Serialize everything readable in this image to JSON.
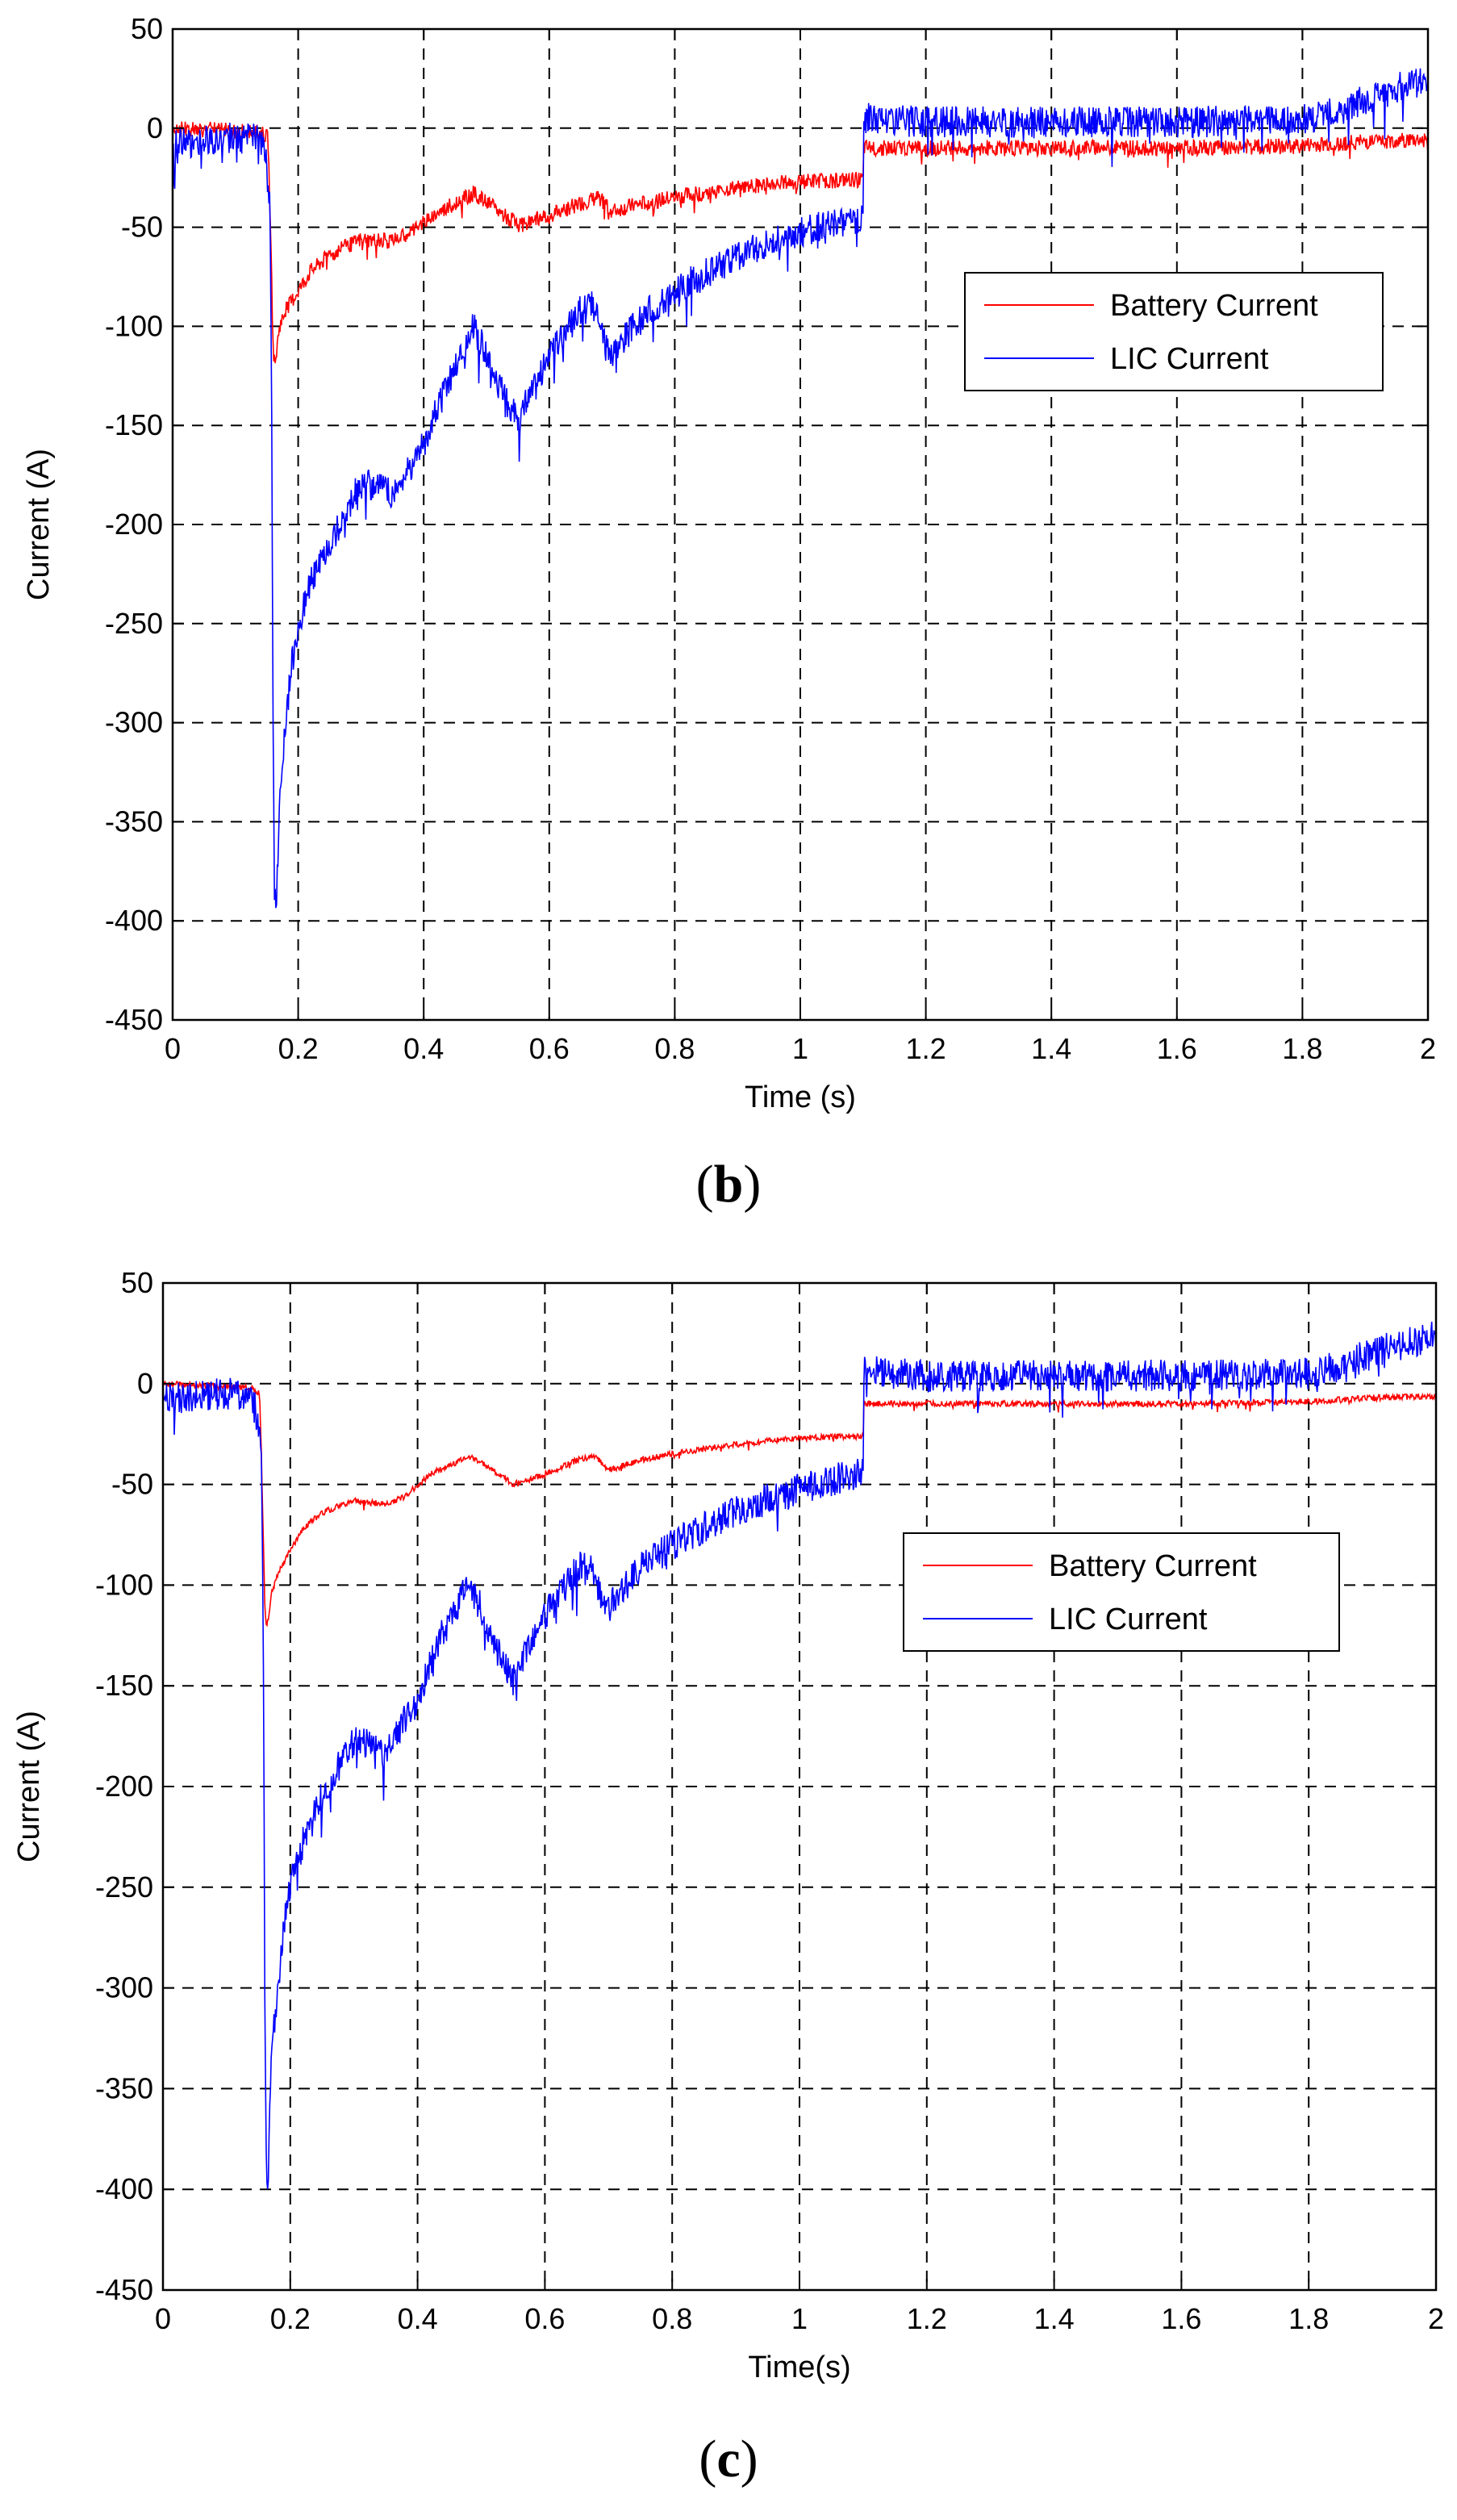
{
  "chart_data": [
    {
      "panel_label": "b",
      "type": "line",
      "xlabel": "Time (s)",
      "ylabel": "Current (A)",
      "xlim": [
        0,
        2
      ],
      "ylim": [
        -450,
        50
      ],
      "xticks": [
        0,
        0.2,
        0.4,
        0.6,
        0.8,
        1,
        1.2,
        1.4,
        1.6,
        1.8,
        2
      ],
      "xtick_labels": [
        "0",
        "0.2",
        "0.4",
        "0.6",
        "0.8",
        "1",
        "1.2",
        "1.4",
        "1.6",
        "1.8",
        "2"
      ],
      "yticks": [
        50,
        0,
        -50,
        -100,
        -150,
        -200,
        -250,
        -300,
        -350,
        -400,
        -450
      ],
      "ytick_labels": [
        "50",
        "0",
        "-50",
        "-100",
        "-150",
        "-200",
        "-250",
        "-300",
        "-350",
        "-400",
        "-450"
      ],
      "grid": true,
      "legend_position": "right",
      "series": [
        {
          "name": "Battery Current",
          "color": "#ff0000",
          "noise": 4,
          "x": [
            0,
            0.14,
            0.152,
            0.155,
            0.16,
            0.163,
            0.17,
            0.18,
            0.2,
            0.22,
            0.25,
            0.3,
            0.35,
            0.38,
            0.42,
            0.48,
            0.52,
            0.55,
            0.6,
            0.65,
            0.68,
            0.7,
            0.75,
            0.8,
            0.9,
            1.0,
            1.1,
            1.101,
            1.2,
            1.4,
            1.6,
            1.8,
            1.9,
            2.0
          ],
          "y": [
            0,
            -2,
            -5,
            -40,
            -110,
            -120,
            -100,
            -92,
            -82,
            -72,
            -64,
            -56,
            -57,
            -52,
            -43,
            -33,
            -42,
            -49,
            -44,
            -38,
            -35,
            -42,
            -38,
            -35,
            -30,
            -27,
            -26,
            -10,
            -10,
            -10,
            -10,
            -9,
            -7,
            -6
          ]
        },
        {
          "name": "LIC Current",
          "color": "#0000ff",
          "noise": 8,
          "x": [
            0,
            0.08,
            0.14,
            0.15,
            0.155,
            0.158,
            0.16,
            0.162,
            0.165,
            0.17,
            0.18,
            0.19,
            0.2,
            0.22,
            0.25,
            0.28,
            0.3,
            0.33,
            0.35,
            0.37,
            0.4,
            0.43,
            0.46,
            0.48,
            0.5,
            0.52,
            0.55,
            0.6,
            0.65,
            0.67,
            0.69,
            0.7,
            0.72,
            0.75,
            0.8,
            0.9,
            1.0,
            1.1,
            1.101,
            1.2,
            1.4,
            1.6,
            1.8,
            1.85,
            1.9,
            1.95,
            2.0
          ],
          "y": [
            -8,
            -5,
            -5,
            -20,
            -40,
            -150,
            -300,
            -380,
            -400,
            -340,
            -300,
            -270,
            -250,
            -230,
            -210,
            -190,
            -180,
            -180,
            -185,
            -175,
            -160,
            -135,
            -115,
            -100,
            -115,
            -130,
            -148,
            -115,
            -92,
            -90,
            -110,
            -115,
            -105,
            -95,
            -82,
            -65,
            -52,
            -45,
            5,
            3,
            3,
            3,
            4,
            8,
            14,
            20,
            24
          ]
        }
      ]
    },
    {
      "panel_label": "c",
      "type": "line",
      "xlabel": "Time(s)",
      "ylabel": "Current (A)",
      "xlim": [
        0,
        2
      ],
      "ylim": [
        -450,
        50
      ],
      "xticks": [
        0,
        0.2,
        0.4,
        0.6,
        0.8,
        1,
        1.2,
        1.4,
        1.6,
        1.8,
        2
      ],
      "xtick_labels": [
        "0",
        "0.2",
        "0.4",
        "0.6",
        "0.8",
        "1",
        "1.2",
        "1.4",
        "1.6",
        "1.8",
        "2"
      ],
      "yticks": [
        50,
        0,
        -50,
        -100,
        -150,
        -200,
        -250,
        -300,
        -350,
        -400,
        -450
      ],
      "ytick_labels": [
        "50",
        "0",
        "-50",
        "-100",
        "-150",
        "-200",
        "-250",
        "-300",
        "-350",
        "-400",
        "-450"
      ],
      "grid": true,
      "legend_position": "right",
      "series": [
        {
          "name": "Battery Current",
          "color": "#ff0000",
          "noise": 1.5,
          "x": [
            0,
            0.14,
            0.152,
            0.155,
            0.16,
            0.163,
            0.17,
            0.18,
            0.2,
            0.22,
            0.25,
            0.3,
            0.35,
            0.38,
            0.42,
            0.48,
            0.52,
            0.55,
            0.6,
            0.65,
            0.68,
            0.7,
            0.75,
            0.8,
            0.9,
            1.0,
            1.1,
            1.101,
            1.2,
            1.4,
            1.6,
            1.8,
            1.9,
            2.0
          ],
          "y": [
            0,
            -2,
            -5,
            -40,
            -110,
            -122,
            -105,
            -95,
            -83,
            -72,
            -64,
            -58,
            -60,
            -56,
            -45,
            -36,
            -43,
            -50,
            -45,
            -38,
            -36,
            -43,
            -38,
            -35,
            -30,
            -27,
            -26,
            -10,
            -10,
            -10,
            -10,
            -9,
            -7,
            -6
          ]
        },
        {
          "name": "LIC Current",
          "color": "#0000ff",
          "noise": 8,
          "x": [
            0,
            0.08,
            0.14,
            0.15,
            0.155,
            0.158,
            0.16,
            0.162,
            0.165,
            0.17,
            0.18,
            0.19,
            0.2,
            0.22,
            0.25,
            0.28,
            0.3,
            0.33,
            0.35,
            0.37,
            0.4,
            0.43,
            0.46,
            0.48,
            0.5,
            0.52,
            0.55,
            0.6,
            0.65,
            0.67,
            0.69,
            0.7,
            0.72,
            0.75,
            0.8,
            0.9,
            1.0,
            1.1,
            1.101,
            1.2,
            1.4,
            1.6,
            1.8,
            1.85,
            1.9,
            1.95,
            2.0
          ],
          "y": [
            -8,
            -5,
            -5,
            -20,
            -40,
            -150,
            -300,
            -385,
            -400,
            -335,
            -300,
            -270,
            -250,
            -228,
            -205,
            -188,
            -178,
            -180,
            -185,
            -172,
            -158,
            -130,
            -112,
            -98,
            -112,
            -130,
            -148,
            -115,
            -92,
            -90,
            -108,
            -112,
            -102,
            -92,
            -80,
            -63,
            -52,
            -44,
            6,
            4,
            4,
            4,
            5,
            9,
            15,
            20,
            24
          ]
        }
      ]
    }
  ],
  "captions": {
    "b": "b",
    "c": "c"
  }
}
